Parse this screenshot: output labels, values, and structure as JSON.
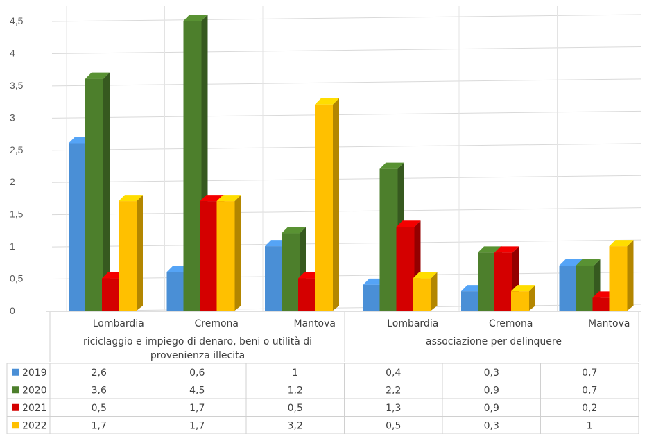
{
  "chart_data": {
    "type": "bar",
    "groups": [
      {
        "label_lines": [
          "riciclaggio e impiego di denaro, beni o utilità di",
          "provenienza illecita"
        ],
        "categories": [
          "Lombardia",
          "Cremona",
          "Mantova"
        ]
      },
      {
        "label_lines": [
          "associazione per delinquere"
        ],
        "categories": [
          "Lombardia",
          "Cremona",
          "Mantova"
        ]
      }
    ],
    "series": [
      {
        "name": "2019",
        "color": "#4a8fd6",
        "values": [
          "2,6",
          "0,6",
          "1",
          "0,4",
          "0,3",
          "0,7"
        ]
      },
      {
        "name": "2020",
        "color": "#4d7f2c",
        "values": [
          "3,6",
          "4,5",
          "1,2",
          "2,2",
          "0,9",
          "0,7"
        ]
      },
      {
        "name": "2021",
        "color": "#d40000",
        "values": [
          "0,5",
          "1,7",
          "0,5",
          "1,3",
          "0,9",
          "0,2"
        ]
      },
      {
        "name": "2022",
        "color": "#ffc000",
        "values": [
          "1,7",
          "1,7",
          "3,2",
          "0,5",
          "0,3",
          "1"
        ]
      }
    ],
    "y_ticks": [
      "0",
      "0,5",
      "1",
      "1,5",
      "2",
      "2,5",
      "3",
      "3,5",
      "4",
      "4,5"
    ],
    "ylim": [
      0,
      4.5
    ],
    "grid": true,
    "legend": "data-table-left"
  }
}
